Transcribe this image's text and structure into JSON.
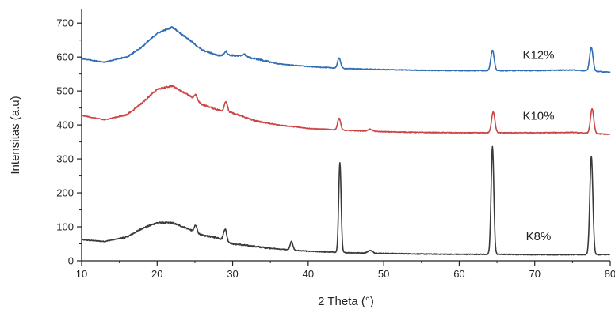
{
  "chart_data": {
    "type": "line",
    "title": "",
    "xlabel": "2 Theta (°)",
    "ylabel": "Intensitas (a.u)",
    "xlim": [
      10,
      80
    ],
    "ylim": [
      0,
      740
    ],
    "x_ticks": [
      10,
      20,
      30,
      40,
      50,
      60,
      70,
      80
    ],
    "y_ticks": [
      0,
      100,
      200,
      300,
      400,
      500,
      600,
      700
    ],
    "grid": false,
    "legend": "inline labels at right",
    "series": [
      {
        "name": "K8%",
        "color": "#3a3a3a",
        "label_at": [
          70.5,
          60
        ],
        "baseline": [
          [
            10,
            62
          ],
          [
            13,
            57
          ],
          [
            16,
            70
          ],
          [
            18,
            95
          ],
          [
            20,
            112
          ],
          [
            22,
            112
          ],
          [
            24,
            95
          ],
          [
            26,
            75
          ],
          [
            28,
            68
          ],
          [
            30,
            50
          ],
          [
            33,
            42
          ],
          [
            36,
            35
          ],
          [
            40,
            28
          ],
          [
            45,
            24
          ],
          [
            50,
            22
          ],
          [
            55,
            20
          ],
          [
            60,
            19
          ],
          [
            65,
            19
          ],
          [
            70,
            18
          ],
          [
            75,
            18
          ],
          [
            80,
            18
          ]
        ],
        "peaks": [
          [
            25.1,
            20,
            0.18
          ],
          [
            29.0,
            35,
            0.2
          ],
          [
            37.8,
            25,
            0.18
          ],
          [
            44.2,
            265,
            0.16
          ],
          [
            48.2,
            8,
            0.3
          ],
          [
            64.4,
            318,
            0.18
          ],
          [
            77.5,
            290,
            0.2
          ]
        ]
      },
      {
        "name": "K10%",
        "color": "#cc4545",
        "label_at": [
          70.5,
          415
        ],
        "baseline": [
          [
            10,
            428
          ],
          [
            13,
            415
          ],
          [
            16,
            430
          ],
          [
            18,
            465
          ],
          [
            20,
            505
          ],
          [
            22,
            515
          ],
          [
            24,
            490
          ],
          [
            26,
            460
          ],
          [
            28,
            445
          ],
          [
            30,
            435
          ],
          [
            33,
            412
          ],
          [
            36,
            400
          ],
          [
            40,
            390
          ],
          [
            45,
            384
          ],
          [
            50,
            380
          ],
          [
            55,
            378
          ],
          [
            60,
            377
          ],
          [
            65,
            377
          ],
          [
            70,
            377
          ],
          [
            75,
            378
          ],
          [
            80,
            372
          ]
        ],
        "peaks": [
          [
            25.1,
            15,
            0.2
          ],
          [
            29.1,
            30,
            0.2
          ],
          [
            44.1,
            35,
            0.2
          ],
          [
            48.2,
            6,
            0.3
          ],
          [
            64.5,
            62,
            0.22
          ],
          [
            77.6,
            72,
            0.22
          ]
        ]
      },
      {
        "name": "K12%",
        "color": "#2f6db5",
        "label_at": [
          70.5,
          595
        ],
        "baseline": [
          [
            10,
            595
          ],
          [
            13,
            585
          ],
          [
            16,
            600
          ],
          [
            18,
            630
          ],
          [
            20,
            670
          ],
          [
            22,
            688
          ],
          [
            24,
            655
          ],
          [
            26,
            620
          ],
          [
            28,
            605
          ],
          [
            30,
            605
          ],
          [
            33,
            595
          ],
          [
            36,
            580
          ],
          [
            40,
            572
          ],
          [
            45,
            566
          ],
          [
            50,
            563
          ],
          [
            55,
            561
          ],
          [
            60,
            560
          ],
          [
            65,
            560
          ],
          [
            70,
            560
          ],
          [
            75,
            562
          ],
          [
            80,
            555
          ]
        ],
        "peaks": [
          [
            29.1,
            12,
            0.2
          ],
          [
            31.5,
            8,
            0.3
          ],
          [
            44.1,
            30,
            0.2
          ],
          [
            64.4,
            60,
            0.22
          ],
          [
            77.5,
            70,
            0.22
          ]
        ]
      }
    ]
  }
}
